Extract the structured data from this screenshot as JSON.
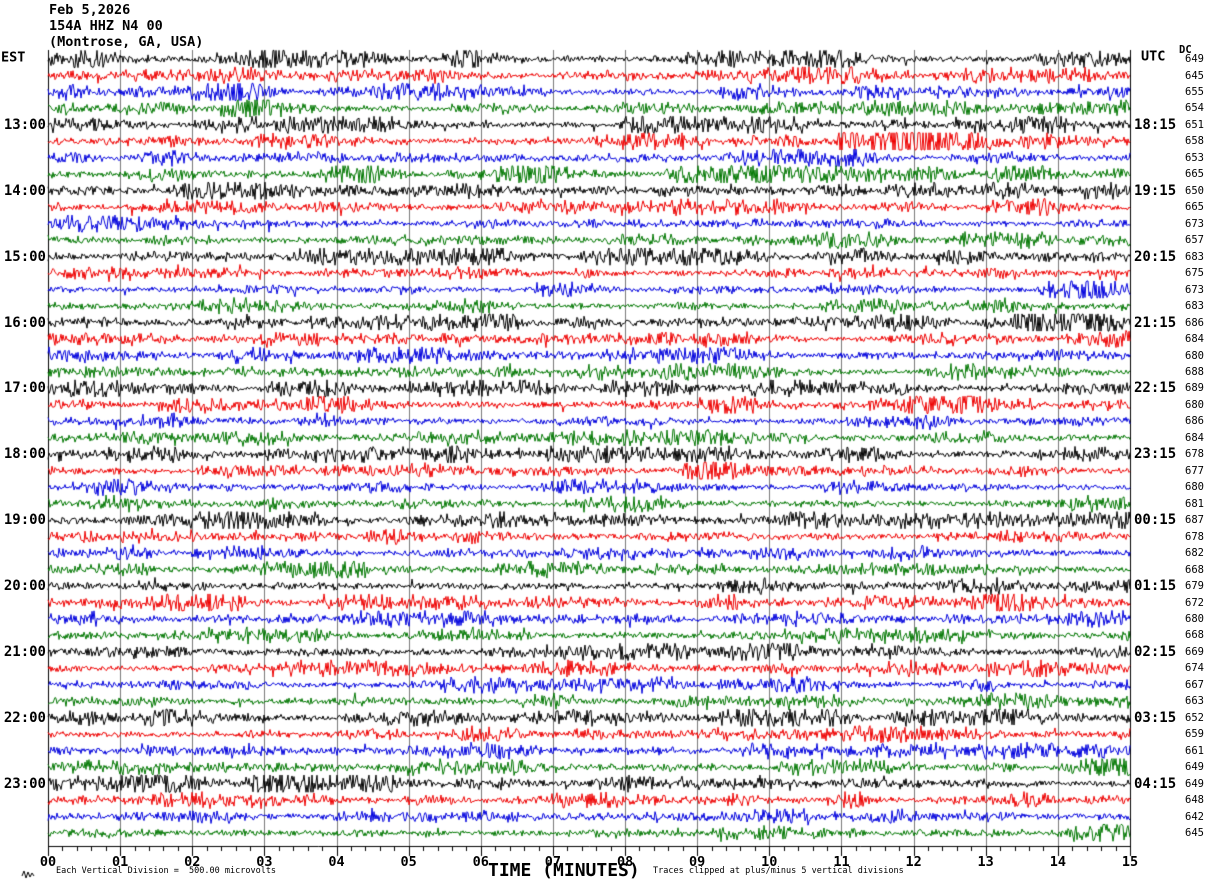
{
  "header": {
    "date": "Feb 5,2026",
    "station": "154A HHZ N4 00",
    "location": "(Montrose, GA, USA)",
    "left_tz_label": "EST",
    "right_tz_label": "UTC",
    "dc_header": "DC"
  },
  "footer": {
    "scale_note": "Each Vertical Division =  500.00 microvolts",
    "axis_label": "TIME (MINUTES)",
    "clip_note": "Traces clipped at plus/minus 5 vertical divisions"
  },
  "colors": {
    "black": "#000000",
    "red": "#ee0000",
    "blue": "#0000dd",
    "green": "#007700",
    "grid": "#787878",
    "frame": "#000000"
  },
  "chart_data": {
    "type": "line",
    "subtype": "seismogram-helicorder",
    "title": "154A HHZ N4 00 (Montrose, GA, USA) — Feb 5,2026",
    "xlabel": "TIME (MINUTES)",
    "x_range": [
      0,
      15
    ],
    "x_tick_labels": [
      "00",
      "01",
      "02",
      "03",
      "04",
      "05",
      "06",
      "07",
      "08",
      "09",
      "10",
      "11",
      "12",
      "13",
      "14",
      "15"
    ],
    "minor_ticks_per_minute": 5,
    "minutes_per_row": 15,
    "row_color_cycle": [
      "black",
      "red",
      "blue",
      "green"
    ],
    "clip_divisions": 5,
    "microvolts_per_division": 500.0,
    "rows": [
      {
        "color": "black",
        "left_label": "",
        "right_label": "",
        "dc": 649
      },
      {
        "color": "red",
        "left_label": "",
        "right_label": "",
        "dc": 645
      },
      {
        "color": "blue",
        "left_label": "",
        "right_label": "",
        "dc": 655
      },
      {
        "color": "green",
        "left_label": "",
        "right_label": "",
        "dc": 654
      },
      {
        "color": "black",
        "left_label": "13:00",
        "right_label": "18:15",
        "dc": 651
      },
      {
        "color": "red",
        "left_label": "",
        "right_label": "",
        "dc": 658
      },
      {
        "color": "blue",
        "left_label": "",
        "right_label": "",
        "dc": 653
      },
      {
        "color": "green",
        "left_label": "",
        "right_label": "",
        "dc": 665
      },
      {
        "color": "black",
        "left_label": "14:00",
        "right_label": "19:15",
        "dc": 650
      },
      {
        "color": "red",
        "left_label": "",
        "right_label": "",
        "dc": 665
      },
      {
        "color": "blue",
        "left_label": "",
        "right_label": "",
        "dc": 673
      },
      {
        "color": "green",
        "left_label": "",
        "right_label": "",
        "dc": 657
      },
      {
        "color": "black",
        "left_label": "15:00",
        "right_label": "20:15",
        "dc": 683
      },
      {
        "color": "red",
        "left_label": "",
        "right_label": "",
        "dc": 675
      },
      {
        "color": "blue",
        "left_label": "",
        "right_label": "",
        "dc": 673
      },
      {
        "color": "green",
        "left_label": "",
        "right_label": "",
        "dc": 683
      },
      {
        "color": "black",
        "left_label": "16:00",
        "right_label": "21:15",
        "dc": 686
      },
      {
        "color": "red",
        "left_label": "",
        "right_label": "",
        "dc": 684
      },
      {
        "color": "blue",
        "left_label": "",
        "right_label": "",
        "dc": 680
      },
      {
        "color": "green",
        "left_label": "",
        "right_label": "",
        "dc": 688
      },
      {
        "color": "black",
        "left_label": "17:00",
        "right_label": "22:15",
        "dc": 689
      },
      {
        "color": "red",
        "left_label": "",
        "right_label": "",
        "dc": 680
      },
      {
        "color": "blue",
        "left_label": "",
        "right_label": "",
        "dc": 686
      },
      {
        "color": "green",
        "left_label": "",
        "right_label": "",
        "dc": 684
      },
      {
        "color": "black",
        "left_label": "18:00",
        "right_label": "23:15",
        "dc": 678
      },
      {
        "color": "red",
        "left_label": "",
        "right_label": "",
        "dc": 677
      },
      {
        "color": "blue",
        "left_label": "",
        "right_label": "",
        "dc": 680
      },
      {
        "color": "green",
        "left_label": "",
        "right_label": "",
        "dc": 681
      },
      {
        "color": "black",
        "left_label": "19:00",
        "right_label": "00:15",
        "dc": 687
      },
      {
        "color": "red",
        "left_label": "",
        "right_label": "",
        "dc": 678
      },
      {
        "color": "blue",
        "left_label": "",
        "right_label": "",
        "dc": 682
      },
      {
        "color": "green",
        "left_label": "",
        "right_label": "",
        "dc": 668
      },
      {
        "color": "black",
        "left_label": "20:00",
        "right_label": "01:15",
        "dc": 679
      },
      {
        "color": "red",
        "left_label": "",
        "right_label": "",
        "dc": 672
      },
      {
        "color": "blue",
        "left_label": "",
        "right_label": "",
        "dc": 680
      },
      {
        "color": "green",
        "left_label": "",
        "right_label": "",
        "dc": 668
      },
      {
        "color": "black",
        "left_label": "21:00",
        "right_label": "02:15",
        "dc": 669
      },
      {
        "color": "red",
        "left_label": "",
        "right_label": "",
        "dc": 674
      },
      {
        "color": "blue",
        "left_label": "",
        "right_label": "",
        "dc": 667
      },
      {
        "color": "green",
        "left_label": "",
        "right_label": "",
        "dc": 663
      },
      {
        "color": "black",
        "left_label": "22:00",
        "right_label": "03:15",
        "dc": 652
      },
      {
        "color": "red",
        "left_label": "",
        "right_label": "",
        "dc": 659
      },
      {
        "color": "blue",
        "left_label": "",
        "right_label": "",
        "dc": 661
      },
      {
        "color": "green",
        "left_label": "",
        "right_label": "",
        "dc": 649
      },
      {
        "color": "black",
        "left_label": "23:00",
        "right_label": "04:15",
        "dc": 649
      },
      {
        "color": "red",
        "left_label": "",
        "right_label": "",
        "dc": 648
      },
      {
        "color": "blue",
        "left_label": "",
        "right_label": "",
        "dc": 642
      },
      {
        "color": "green",
        "left_label": "",
        "right_label": "",
        "dc": 645
      }
    ],
    "events": [
      {
        "row": 0,
        "start_min": 2.9,
        "end_min": 3.4,
        "amp": 1.8
      },
      {
        "row": 4,
        "start_min": 9.7,
        "end_min": 10.5,
        "amp": 2.6
      },
      {
        "row": 4,
        "start_min": 12.6,
        "end_min": 14.95,
        "amp": 1.45
      },
      {
        "row": 5,
        "start_min": 10.95,
        "end_min": 12.25,
        "amp": 4.5
      },
      {
        "row": 5,
        "start_min": 12.25,
        "end_min": 13.6,
        "amp": 1.5
      },
      {
        "row": 16,
        "start_min": 6.05,
        "end_min": 6.5,
        "amp": 2.3
      },
      {
        "row": 16,
        "start_min": 13.3,
        "end_min": 14.7,
        "amp": 1.6
      }
    ]
  }
}
